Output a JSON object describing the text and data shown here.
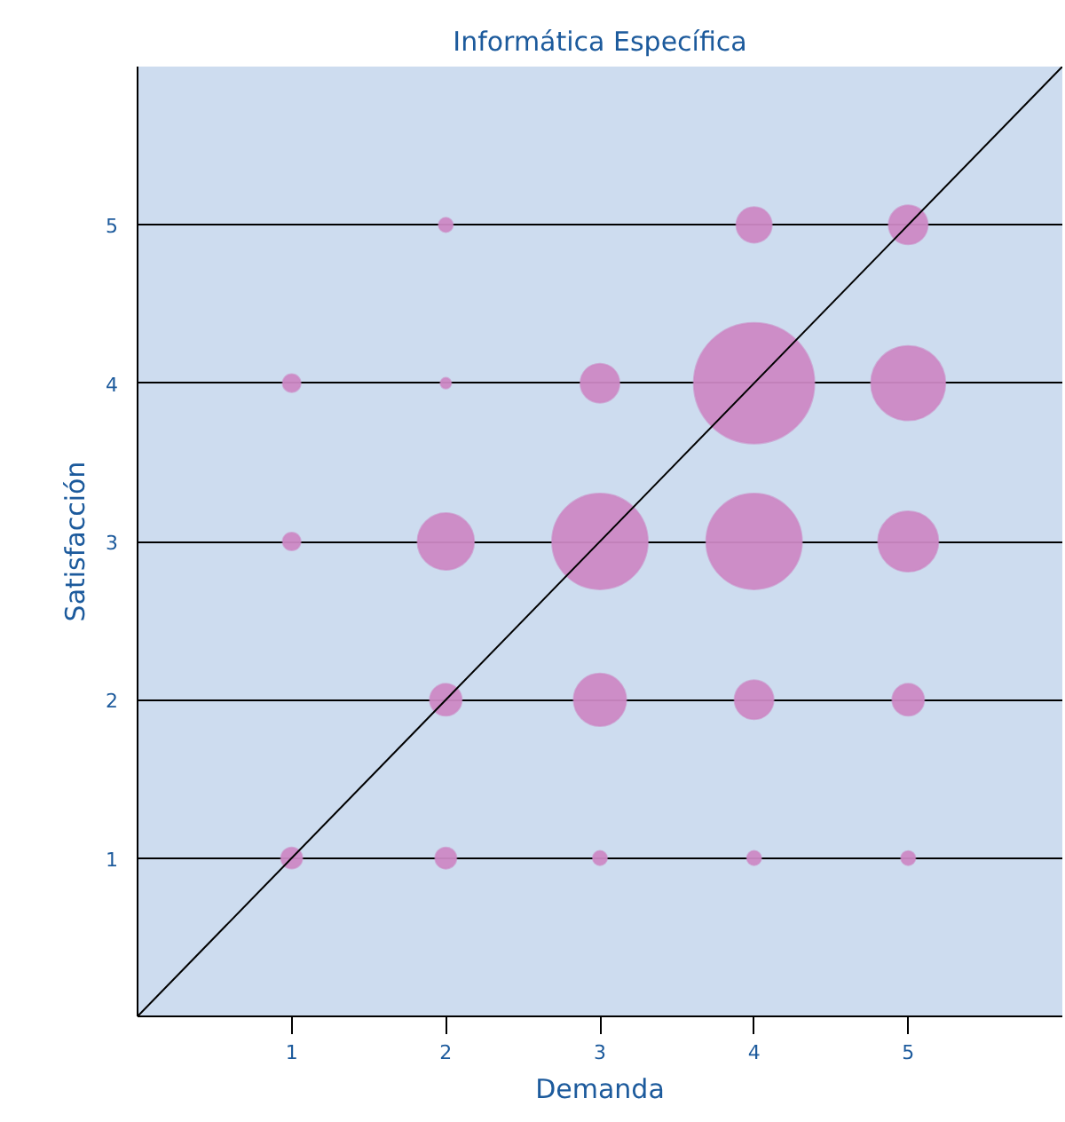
{
  "chart_data": {
    "type": "bubble",
    "title": "Informática Específica",
    "xlabel": "Demanda",
    "ylabel": "Satisfacción",
    "xlim": [
      0,
      6
    ],
    "ylim": [
      0,
      6
    ],
    "xticks": [
      1,
      2,
      3,
      4,
      5
    ],
    "yticks": [
      1,
      2,
      3,
      4,
      5
    ],
    "grid": "y",
    "series": [
      {
        "color": "#cc88c4",
        "x": [
          2,
          4,
          5,
          1,
          2,
          3,
          4,
          5,
          1,
          2,
          3,
          4,
          5,
          2,
          3,
          4,
          5,
          1,
          2,
          3,
          4,
          5
        ],
        "values": [
          5,
          5,
          5,
          4,
          4,
          4,
          4,
          4,
          3,
          3,
          3,
          3,
          3,
          2,
          2,
          2,
          2,
          1,
          1,
          1,
          1,
          1
        ],
        "sizes": [
          0.014,
          0.087,
          0.105,
          0.022,
          0.008,
          0.105,
          1,
          0.38,
          0.022,
          0.22,
          0.63,
          0.63,
          0.25,
          0.07,
          0.19,
          0.105,
          0.07,
          0.031,
          0.031,
          0.014,
          0.014,
          0.014
        ]
      },
      {
        "type": "line",
        "color": "#000000",
        "x": [
          0,
          6
        ],
        "values": [
          0,
          6
        ]
      }
    ]
  }
}
